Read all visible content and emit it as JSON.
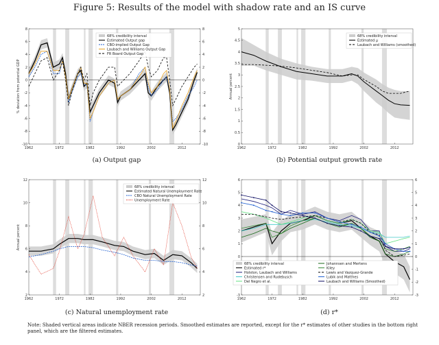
{
  "figure_title": "Figure 5: Results of the model with shadow rate and an IS curve",
  "note": "Note: Shaded vertical areas indicate NBER recession periods. Smoothed estimates are reported, except for the r* estimates of other studies in the bottom right panel, which are the filtered estimates.",
  "recessions": [
    [
      1969.9,
      1970.9
    ],
    [
      1973.9,
      1975.2
    ],
    [
      1980.0,
      1980.5
    ],
    [
      1981.5,
      1982.9
    ],
    [
      1990.5,
      1991.2
    ],
    [
      2001.2,
      2001.9
    ],
    [
      2007.9,
      2009.5
    ]
  ],
  "colors": {
    "band": "#cccccc",
    "black": "#000000",
    "blue": "#1f5fd0",
    "orange": "#e8a020",
    "green": "#3a8a3a",
    "red": "#e03020",
    "navy": "#1a1a7a",
    "cyan": "#40c8c8",
    "lightgreen": "#60e080",
    "darkgreen": "#1a6a1a",
    "darkblue": "#0a0a60"
  },
  "chart_data": [
    {
      "type": "line",
      "id": "a",
      "caption": "(a) Output gap",
      "ylabel": "% deviation from potential GDP",
      "xlim": [
        1962,
        2018
      ],
      "ylim": [
        -10,
        8
      ],
      "xticks": [
        "1962",
        "1972",
        "1982",
        "1992",
        "2002",
        "2012"
      ],
      "yticks": [
        "8",
        "6",
        "4",
        "2",
        "0",
        "-2",
        "-4",
        "-6",
        "-8",
        "-10"
      ],
      "right_yticks": [
        "8",
        "6",
        "4",
        "2",
        "0",
        "-2",
        "-4",
        "-6",
        "-8",
        "-10"
      ],
      "legend": [
        "68% credibility interval",
        "Estimated Output gap",
        "CBO-implied Output Gap",
        "Laubach and Williams Output Gap",
        "FR Board Output Gap"
      ],
      "x": [
        1962,
        1964,
        1966,
        1968,
        1970,
        1972,
        1973,
        1974,
        1975,
        1976,
        1978,
        1979,
        1980,
        1981,
        1982,
        1983,
        1985,
        1988,
        1990,
        1991,
        1992,
        1995,
        1998,
        2000,
        2001,
        2002,
        2004,
        2006,
        2007,
        2008,
        2009,
        2010,
        2012,
        2014,
        2016,
        2017
      ],
      "series": [
        {
          "name": "Estimated Output gap",
          "values": [
            1,
            3,
            5.5,
            5.8,
            2,
            2.5,
            3.5,
            1,
            -3,
            -1.5,
            1,
            1.5,
            -1,
            -0.5,
            -5,
            -4,
            -2,
            0,
            -0.5,
            -3.5,
            -2.5,
            -1.5,
            0,
            1,
            -2,
            -2.5,
            -1,
            0,
            0.5,
            -2,
            -7.8,
            -7,
            -5,
            -3,
            0,
            1.2
          ]
        },
        {
          "name": "CBO-implied Output Gap",
          "values": [
            0.5,
            2,
            4,
            4.5,
            1,
            1,
            3,
            0.5,
            -3.5,
            -2,
            0.5,
            1,
            -0.5,
            -1,
            -6.5,
            -5,
            -2.5,
            -0.5,
            0,
            -3,
            -2.5,
            -1.5,
            1,
            2,
            -1,
            -2.5,
            -1.5,
            0,
            0.5,
            -1.5,
            -6.5,
            -6,
            -4.5,
            -2.5,
            -1,
            0
          ]
        },
        {
          "name": "Laubach and Williams Output Gap",
          "values": [
            1,
            2.5,
            4.5,
            4.5,
            1.5,
            1.5,
            3,
            0.5,
            -3,
            -1.5,
            1,
            2,
            -0.5,
            -0.5,
            -6,
            -5,
            -2.5,
            -0.5,
            0,
            -3,
            -2.5,
            -1.5,
            0.5,
            2,
            -0.5,
            -2,
            -1,
            1,
            1.5,
            -1.5,
            -7.5,
            -6.5,
            -4,
            -2,
            0.5,
            1.5
          ]
        },
        {
          "name": "FR Board Output Gap",
          "values": [
            -1,
            1,
            3,
            3.5,
            0,
            1.5,
            3,
            0,
            -4,
            -2,
            1,
            2,
            0,
            1,
            -4,
            -2,
            0,
            2,
            2,
            -1,
            -0.5,
            1,
            3,
            4.5,
            2,
            0.5,
            1.5,
            3.5,
            3.5,
            0,
            -4,
            -3,
            -1,
            0.5,
            2,
            2.5
          ]
        }
      ]
    },
    {
      "type": "line",
      "id": "b",
      "caption": "(b) Potential output growth rate",
      "ylabel": "Annual percent",
      "xlim": [
        1962,
        2018
      ],
      "ylim": [
        0,
        5
      ],
      "xticks": [
        "1962",
        "1972",
        "1982",
        "1992",
        "2002",
        "2012"
      ],
      "yticks": [
        "5",
        "4.5",
        "4",
        "3.5",
        "3",
        "2.5",
        "2",
        "1.5",
        "1",
        "0.5",
        "0"
      ],
      "legend": [
        "68% credibility interval",
        "Estimated μ",
        "Laubach and Williams (smoothed)"
      ],
      "x": [
        1962,
        1966,
        1970,
        1975,
        1980,
        1985,
        1990,
        1995,
        1998,
        2000,
        2002,
        2004,
        2006,
        2008,
        2010,
        2012,
        2014,
        2017
      ],
      "series": [
        {
          "name": "Estimated μ",
          "values": [
            4.0,
            3.85,
            3.6,
            3.35,
            3.15,
            3.05,
            2.95,
            2.95,
            3.05,
            2.95,
            2.7,
            2.5,
            2.3,
            2.1,
            1.9,
            1.75,
            1.7,
            1.68
          ]
        },
        {
          "name": "Laubach and Williams (smoothed)",
          "values": [
            3.45,
            3.45,
            3.42,
            3.38,
            3.3,
            3.2,
            3.1,
            2.95,
            3.0,
            3.0,
            2.8,
            2.65,
            2.5,
            2.3,
            2.2,
            2.2,
            2.2,
            2.3
          ]
        }
      ],
      "band_upper": [
        4.6,
        4.3,
        4.0,
        3.7,
        3.5,
        3.35,
        3.25,
        3.25,
        3.35,
        3.3,
        3.1,
        2.95,
        2.8,
        2.6,
        2.45,
        2.35,
        2.3,
        2.3
      ],
      "band_lower": [
        3.4,
        3.4,
        3.2,
        3.0,
        2.8,
        2.75,
        2.65,
        2.65,
        2.75,
        2.6,
        2.3,
        2.05,
        1.8,
        1.6,
        1.35,
        1.15,
        1.1,
        1.05
      ]
    },
    {
      "type": "line",
      "id": "c",
      "caption": "(c) Natural unemployment rate",
      "ylabel": "Annual percent",
      "xlim": [
        1962,
        2018
      ],
      "ylim": [
        2,
        12
      ],
      "xticks": [
        "1962",
        "1972",
        "1982",
        "1992",
        "2002",
        "2012"
      ],
      "yticks": [
        "12",
        "10",
        "8",
        "6",
        "4",
        "2"
      ],
      "right_yticks": [
        "12",
        "10",
        "8",
        "6",
        "4",
        "2"
      ],
      "legend": [
        "68% credibility interval",
        "Estimated Natural Unemployment Rate",
        "CBO Natural Unemployment Rate",
        "Unemployment Rate"
      ],
      "x": [
        1962,
        1966,
        1970,
        1972,
        1975,
        1978,
        1980,
        1983,
        1986,
        1990,
        1993,
        1996,
        2000,
        2003,
        2006,
        2009,
        2012,
        2015,
        2017
      ],
      "series": [
        {
          "name": "Estimated Natural Unemployment Rate",
          "values": [
            5.8,
            5.8,
            6.0,
            6.4,
            6.9,
            6.9,
            6.8,
            6.8,
            6.6,
            6.3,
            6.2,
            5.8,
            5.5,
            5.6,
            5.0,
            5.5,
            5.4,
            4.8,
            4.3
          ]
        },
        {
          "name": "CBO Natural Unemployment Rate",
          "values": [
            5.3,
            5.5,
            5.8,
            6.0,
            6.2,
            6.2,
            6.2,
            6.1,
            5.9,
            5.7,
            5.5,
            5.2,
            5.0,
            5.0,
            4.9,
            4.9,
            4.8,
            4.6,
            4.5
          ]
        },
        {
          "name": "Unemployment Rate",
          "values": [
            5.5,
            3.8,
            4.3,
            5.8,
            8.8,
            6.0,
            7.2,
            10.6,
            7.0,
            5.4,
            7.0,
            5.4,
            4.0,
            6.0,
            4.6,
            10.0,
            8.0,
            5.3,
            4.3
          ]
        }
      ]
    },
    {
      "type": "line",
      "id": "d",
      "caption": "(d) r*",
      "xlim": [
        1962,
        2018
      ],
      "ylim": [
        -3,
        6
      ],
      "xticks": [
        "1962",
        "1972",
        "1982",
        "1992",
        "2002",
        "2012"
      ],
      "yticks": [
        "6",
        "5",
        "4",
        "3",
        "2",
        "1",
        "0",
        "-1",
        "-2",
        "-3"
      ],
      "right_yticks": [
        "6",
        "5",
        "4",
        "3",
        "2",
        "1",
        "0",
        "-1",
        "-2",
        "-3"
      ],
      "legend": [
        "68% credibility interval",
        "Estimated r*",
        "Holston, Laubach and Williams",
        "Christensen and Rudebusch",
        "Del Negro et al.",
        "Johannsen and Mertens",
        "Kiley",
        "Lewis and Vazquez-Grande",
        "Lubik and Matthes",
        "Laubach and Williams (Smoothed)"
      ],
      "x": [
        1962,
        1966,
        1970,
        1972,
        1975,
        1978,
        1982,
        1986,
        1990,
        1994,
        1998,
        2001,
        2004,
        2007,
        2009,
        2012,
        2015,
        2017
      ],
      "series": [
        {
          "name": "Estimated r*",
          "values": [
            2.0,
            2.3,
            2.6,
            1.0,
            2.0,
            2.6,
            2.8,
            3.2,
            2.8,
            2.6,
            2.8,
            2.2,
            1.6,
            1.2,
            0.2,
            -0.4,
            -0.8,
            -1.8
          ]
        },
        {
          "name": "Holston, Laubach and Williams",
          "values": [
            4.5,
            4.3,
            4.0,
            3.8,
            3.3,
            3.6,
            3.3,
            3.5,
            3.0,
            2.8,
            3.2,
            2.9,
            2.0,
            2.0,
            0.8,
            0.4,
            0.4,
            0.6
          ]
        },
        {
          "name": "Johannsen and Mertens",
          "values": [
            2.0,
            2.2,
            2.5,
            2.5,
            2.5,
            2.6,
            2.8,
            2.9,
            2.7,
            2.5,
            2.4,
            2.2,
            1.9,
            1.8,
            1.5,
            1.5,
            1.5,
            1.6
          ]
        },
        {
          "name": "Kiley",
          "values": [
            3.5,
            3.3,
            3.0,
            2.8,
            2.5,
            2.7,
            3.0,
            3.2,
            2.8,
            2.6,
            2.9,
            2.6,
            2.0,
            1.9,
            1.0,
            1.2,
            1.4,
            1.5
          ]
        },
        {
          "name": "Lewis and Vazquez-Grande",
          "values": [
            1.5,
            1.8,
            2.2,
            2.0,
            1.8,
            2.2,
            2.6,
            3.0,
            2.6,
            2.3,
            2.6,
            2.2,
            1.5,
            1.2,
            0.2,
            0.0,
            0.2,
            0.4
          ]
        },
        {
          "name": "Lubik and Matthes",
          "values": [
            2.2,
            2.4,
            2.6,
            1.5,
            1.8,
            2.4,
            2.8,
            3.0,
            2.6,
            2.4,
            2.6,
            2.2,
            1.6,
            1.4,
            0.6,
            0.4,
            0.6,
            0.8
          ]
        },
        {
          "name": "Laubach and Williams (Smoothed)",
          "values": [
            3.3,
            3.3,
            3.1,
            3.0,
            2.9,
            3.0,
            3.1,
            3.2,
            3.0,
            2.7,
            2.9,
            2.6,
            1.9,
            1.7,
            0.5,
            0.0,
            0.1,
            0.2
          ]
        },
        {
          "name": "Christensen and Rudebusch",
          "values": [
            4.2,
            4.0,
            3.6,
            3.5,
            3.3,
            3.2,
            3.4,
            3.4,
            3.0,
            2.7,
            2.5,
            2.3,
            1.9,
            1.6,
            1.0,
            0.6,
            0.4,
            0.4
          ]
        },
        {
          "name": "Del Negro et al.",
          "values": [
            4.8,
            4.6,
            4.4,
            4.0,
            3.5,
            3.4,
            3.2,
            3.0,
            2.6,
            2.4,
            2.3,
            2.0,
            1.6,
            1.4,
            0.8,
            0.6,
            0.6,
            0.7
          ]
        }
      ],
      "band_upper": [
        2.9,
        3.1,
        3.3,
        1.9,
        2.8,
        3.3,
        3.5,
        3.9,
        3.5,
        3.3,
        3.5,
        2.9,
        2.3,
        2.0,
        1.1,
        0.5,
        0.2,
        -0.8
      ],
      "band_lower": [
        1.1,
        1.5,
        1.9,
        0.1,
        1.2,
        1.9,
        2.1,
        2.5,
        2.1,
        1.9,
        2.1,
        1.5,
        0.9,
        0.4,
        -0.7,
        -1.3,
        -1.8,
        -2.8
      ]
    }
  ]
}
